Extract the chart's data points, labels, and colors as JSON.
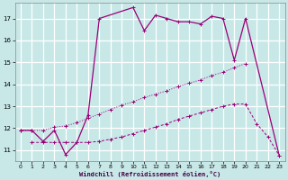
{
  "background_color": "#c8e8e8",
  "grid_color": "#ffffff",
  "line_color": "#990077",
  "xlabel": "Windchill (Refroidissement éolien,°C)",
  "xlim": [
    -0.5,
    23.5
  ],
  "ylim": [
    10.5,
    17.7
  ],
  "yticks": [
    11,
    12,
    13,
    14,
    15,
    16,
    17
  ],
  "xticks": [
    0,
    1,
    2,
    3,
    4,
    5,
    6,
    7,
    8,
    9,
    10,
    11,
    12,
    13,
    14,
    15,
    16,
    17,
    18,
    19,
    20,
    21,
    22,
    23
  ],
  "curve_solid_x": [
    0,
    1,
    2,
    3,
    4,
    5,
    6,
    7,
    10,
    11,
    12,
    13,
    14,
    15,
    16,
    17,
    18,
    19,
    20,
    23
  ],
  "curve_solid_y": [
    11.9,
    11.9,
    11.4,
    11.9,
    10.8,
    11.35,
    12.6,
    17.0,
    17.5,
    16.45,
    17.15,
    17.0,
    16.85,
    16.85,
    16.75,
    17.1,
    17.0,
    15.1,
    17.0,
    10.75
  ],
  "curve_dotted_x": [
    0,
    1,
    2,
    3,
    4,
    5,
    6,
    7,
    8,
    9,
    10,
    11,
    12,
    13,
    14,
    15,
    16,
    17,
    18,
    19,
    20
  ],
  "curve_dotted_y": [
    11.9,
    11.9,
    11.9,
    12.05,
    12.1,
    12.25,
    12.45,
    12.65,
    12.85,
    13.05,
    13.2,
    13.4,
    13.55,
    13.7,
    13.9,
    14.05,
    14.2,
    14.4,
    14.55,
    14.75,
    14.95
  ],
  "curve_dashed_x": [
    1,
    2,
    3,
    4,
    5,
    6,
    7,
    8,
    9,
    10,
    11,
    12,
    13,
    14,
    15,
    16,
    17,
    18,
    19,
    20,
    21,
    22,
    23
  ],
  "curve_dashed_y": [
    11.35,
    11.35,
    11.35,
    11.35,
    11.35,
    11.35,
    11.4,
    11.5,
    11.6,
    11.75,
    11.9,
    12.05,
    12.2,
    12.4,
    12.55,
    12.7,
    12.85,
    13.0,
    13.1,
    13.1,
    12.2,
    11.6,
    10.75
  ]
}
